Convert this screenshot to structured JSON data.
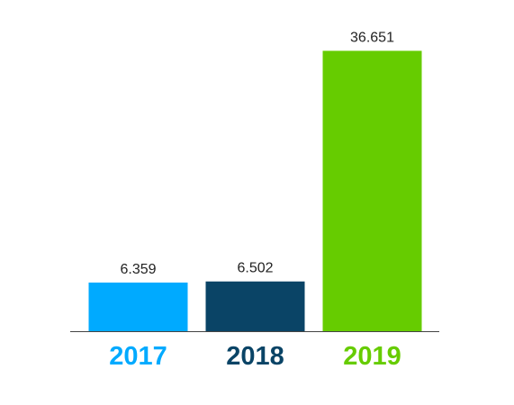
{
  "chart_data": {
    "type": "bar",
    "categories": [
      "2017",
      "2018",
      "2019"
    ],
    "values": [
      6.359,
      6.502,
      36.651
    ],
    "value_labels": [
      "6.359",
      "6.502",
      "36.651"
    ],
    "colors": [
      "#00aaff",
      "#0a4466",
      "#66cc00"
    ],
    "title": "",
    "xlabel": "",
    "ylabel": "",
    "ylim": [
      0,
      40
    ],
    "grid": false,
    "legend": "none",
    "baseline_color": "#444444"
  }
}
